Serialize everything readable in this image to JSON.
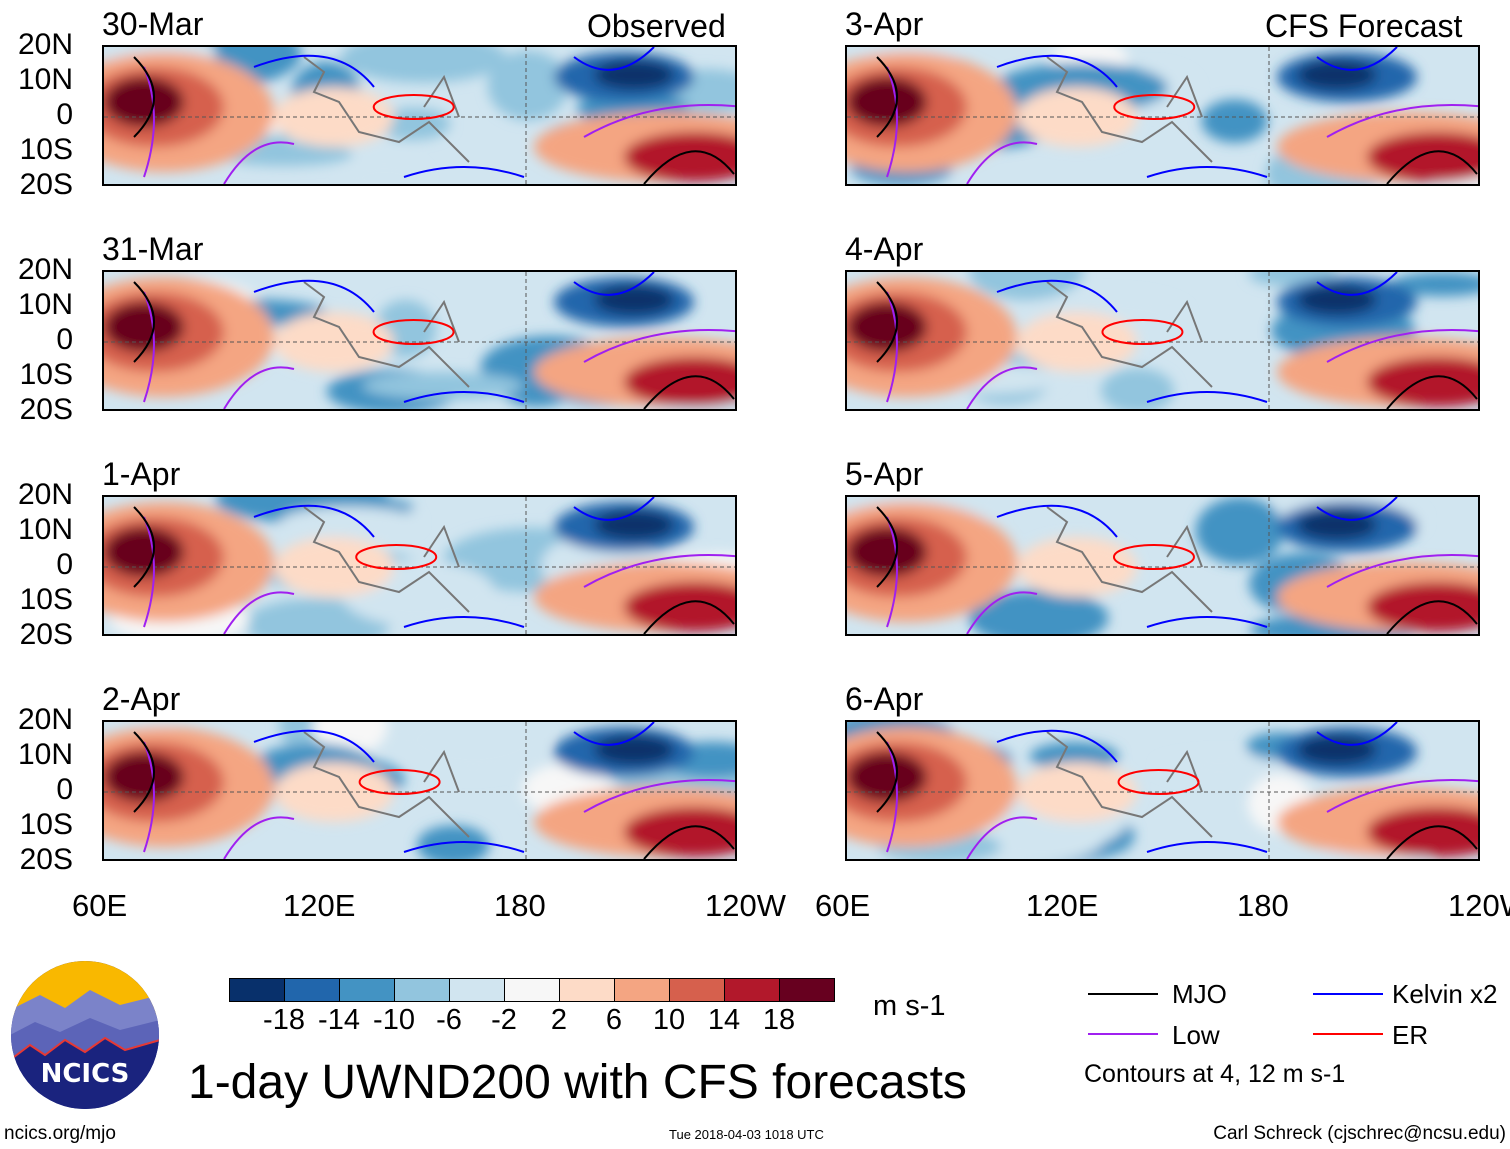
{
  "header": {
    "left_label": "Observed",
    "right_label": "CFS Forecast"
  },
  "panels": {
    "observed": [
      "30-Mar",
      "31-Mar",
      "1-Apr",
      "2-Apr"
    ],
    "forecast": [
      "3-Apr",
      "4-Apr",
      "5-Apr",
      "6-Apr"
    ]
  },
  "axes": {
    "lat_labels": [
      "20N",
      "10N",
      "0",
      "10S",
      "20S"
    ],
    "lon_labels": [
      "60E",
      "120E",
      "180",
      "120W"
    ]
  },
  "colorbar": {
    "colors": [
      "#08306b",
      "#2166ac",
      "#4393c3",
      "#92c5de",
      "#d1e5f0",
      "#f7f7f7",
      "#fddbc7",
      "#f4a582",
      "#d6604d",
      "#b2182b",
      "#67001f"
    ],
    "labels": [
      "-18",
      "-14",
      "-10",
      "-6",
      "-2",
      "2",
      "6",
      "10",
      "14",
      "18"
    ],
    "units": "m s-1"
  },
  "legend": {
    "items": [
      {
        "label": "MJO",
        "color": "#000000"
      },
      {
        "label": "Kelvin x2",
        "color": "#0000ff"
      },
      {
        "label": "Low",
        "color": "#a020f0"
      },
      {
        "label": "ER",
        "color": "#ff0000"
      }
    ],
    "note": "Contours at 4, 12 m s-1"
  },
  "footer": {
    "title": "1-day UWND200 with CFS forecasts",
    "url": "ncics.org/mjo",
    "timestamp": "Tue 2018-04-03 1018 UTC",
    "credit": "Carl Schreck (cjschrec@ncsu.edu)",
    "logo_text": "NCICS"
  }
}
